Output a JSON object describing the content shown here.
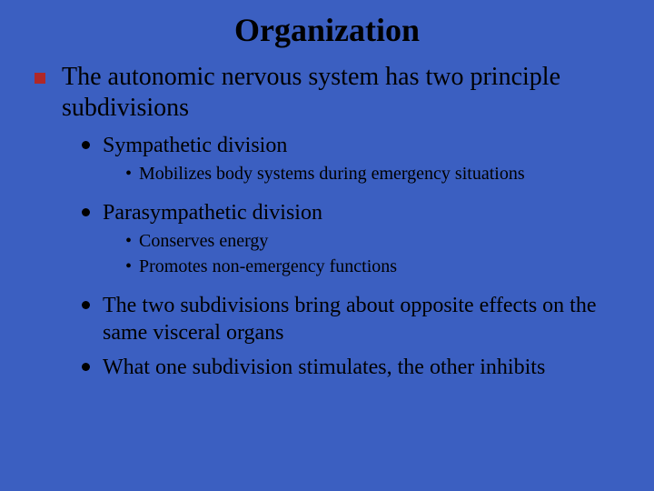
{
  "background_color": "#3b5fc1",
  "text_color": "#000000",
  "square_bullet_color": "#b02828",
  "dot_bullet_color": "#000000",
  "title": "Organization",
  "title_fontsize": 36,
  "lvl1_fontsize": 28,
  "lvl2_fontsize": 24,
  "lvl3_fontsize": 20,
  "lvl1": {
    "text": "The autonomic nervous system has two principle subdivisions"
  },
  "lvl2_items": [
    {
      "text": "Sympathetic division"
    },
    {
      "text": "Parasympathetic division"
    },
    {
      "text": "The two subdivisions bring about opposite effects on the same visceral organs"
    },
    {
      "text": "What one subdivision stimulates, the other inhibits"
    }
  ],
  "lvl3_groups": {
    "sympathetic": [
      {
        "text": "Mobilizes body systems during emergency situations"
      }
    ],
    "parasympathetic": [
      {
        "text": "Conserves energy"
      },
      {
        "text": "Promotes non-emergency functions"
      }
    ]
  },
  "dash_glyph": "•"
}
